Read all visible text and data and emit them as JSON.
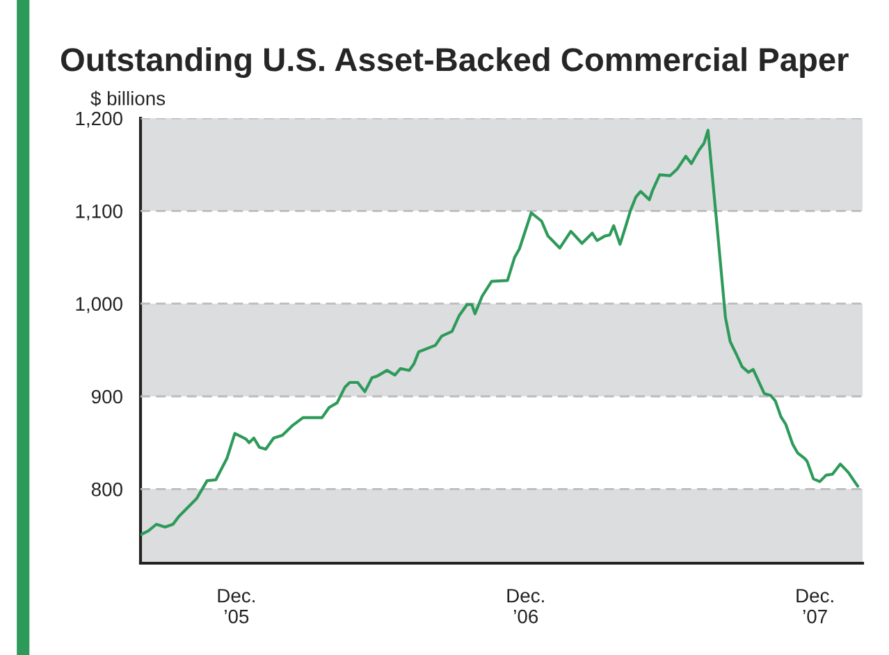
{
  "chart_data": {
    "type": "line",
    "title": "Outstanding U.S. Asset-Backed Commercial Paper",
    "ylabel": "$ billions",
    "x": [
      "2005-08-03",
      "2005-08-12",
      "2005-08-22",
      "2005-09-02",
      "2005-09-12",
      "2005-09-19",
      "2005-10-12",
      "2005-10-25",
      "2005-11-05",
      "2005-11-19",
      "2005-11-29",
      "2005-12-13",
      "2005-12-17",
      "2005-12-23",
      "2005-12-30",
      "2006-01-07",
      "2006-01-17",
      "2006-01-28",
      "2006-02-09",
      "2006-02-23",
      "2006-03-19",
      "2006-03-28",
      "2006-04-07",
      "2006-04-17",
      "2006-04-23",
      "2006-05-03",
      "2006-05-12",
      "2006-05-21",
      "2006-05-28",
      "2006-06-09",
      "2006-06-19",
      "2006-06-26",
      "2006-07-07",
      "2006-07-13",
      "2006-07-19",
      "2006-08-09",
      "2006-08-17",
      "2006-08-30",
      "2006-09-08",
      "2006-09-18",
      "2006-09-24",
      "2006-09-28",
      "2006-10-07",
      "2006-10-19",
      "2006-11-08",
      "2006-11-17",
      "2006-11-23",
      "2006-12-08",
      "2006-12-21",
      "2006-12-29",
      "2007-01-13",
      "2007-01-27",
      "2007-02-10",
      "2007-02-23",
      "2007-03-01",
      "2007-03-11",
      "2007-03-17",
      "2007-03-22",
      "2007-03-30",
      "2007-04-06",
      "2007-04-12",
      "2007-04-19",
      "2007-04-25",
      "2007-05-06",
      "2007-05-10",
      "2007-05-19",
      "2007-06-01",
      "2007-06-10",
      "2007-06-21",
      "2007-06-28",
      "2007-07-08",
      "2007-07-14",
      "2007-07-19",
      "2007-07-31",
      "2007-08-10",
      "2007-08-16",
      "2007-08-24",
      "2007-08-31",
      "2007-09-08",
      "2007-09-14",
      "2007-09-28",
      "2007-10-06",
      "2007-10-12",
      "2007-10-19",
      "2007-10-25",
      "2007-11-03",
      "2007-11-09",
      "2007-11-18",
      "2007-11-21",
      "2007-11-29",
      "2007-12-07",
      "2007-12-15",
      "2007-12-23",
      "2008-01-02",
      "2008-01-12",
      "2008-01-24"
    ],
    "series": [
      {
        "color": "#2e9a5a",
        "values": [
          751,
          755,
          762,
          759,
          762,
          770,
          790,
          809,
          810,
          833,
          860,
          854,
          850,
          855,
          845,
          843,
          855,
          858,
          868,
          877,
          877,
          888,
          893,
          910,
          915,
          915,
          905,
          920,
          922,
          928,
          923,
          930,
          928,
          935,
          948,
          955,
          965,
          970,
          987,
          999,
          999,
          989,
          1008,
          1024,
          1025,
          1050,
          1059,
          1098,
          1089,
          1073,
          1060,
          1078,
          1065,
          1076,
          1068,
          1073,
          1074,
          1084,
          1064,
          1083,
          1100,
          1115,
          1121,
          1112,
          1122,
          1139,
          1138,
          1145,
          1159,
          1151,
          1166,
          1173,
          1187,
          1078,
          985,
          959,
          945,
          932,
          926,
          929,
          903,
          901,
          895,
          878,
          870,
          848,
          839,
          833,
          830,
          811,
          808,
          815,
          816,
          827,
          818,
          803
        ]
      }
    ],
    "xlim": [
      "2005-08-02",
      "2008-01-30"
    ],
    "xticks": [
      {
        "value": "2005-12-01",
        "label": "Dec.\n’05"
      },
      {
        "value": "2006-12-01",
        "label": "Dec.\n’06"
      },
      {
        "value": "2007-12-01",
        "label": "Dec.\n’07"
      }
    ],
    "ylim": [
      720,
      1200
    ],
    "yticks": [
      {
        "value": 800,
        "label": "800"
      },
      {
        "value": 900,
        "label": "900"
      },
      {
        "value": 1000,
        "label": "1,000"
      },
      {
        "value": 1100,
        "label": "1,100"
      },
      {
        "value": 1200,
        "label": "1,200"
      }
    ],
    "grid": "y",
    "line_style": "solid",
    "marker": "none",
    "bands": [
      {
        "axis": "y",
        "from": 720,
        "to": 800,
        "color": "#dcdddf"
      },
      {
        "axis": "y",
        "from": 900,
        "to": 1000,
        "color": "#dcdddf"
      },
      {
        "axis": "y",
        "from": 1100,
        "to": 1200,
        "color": "#dcdddf"
      }
    ]
  }
}
